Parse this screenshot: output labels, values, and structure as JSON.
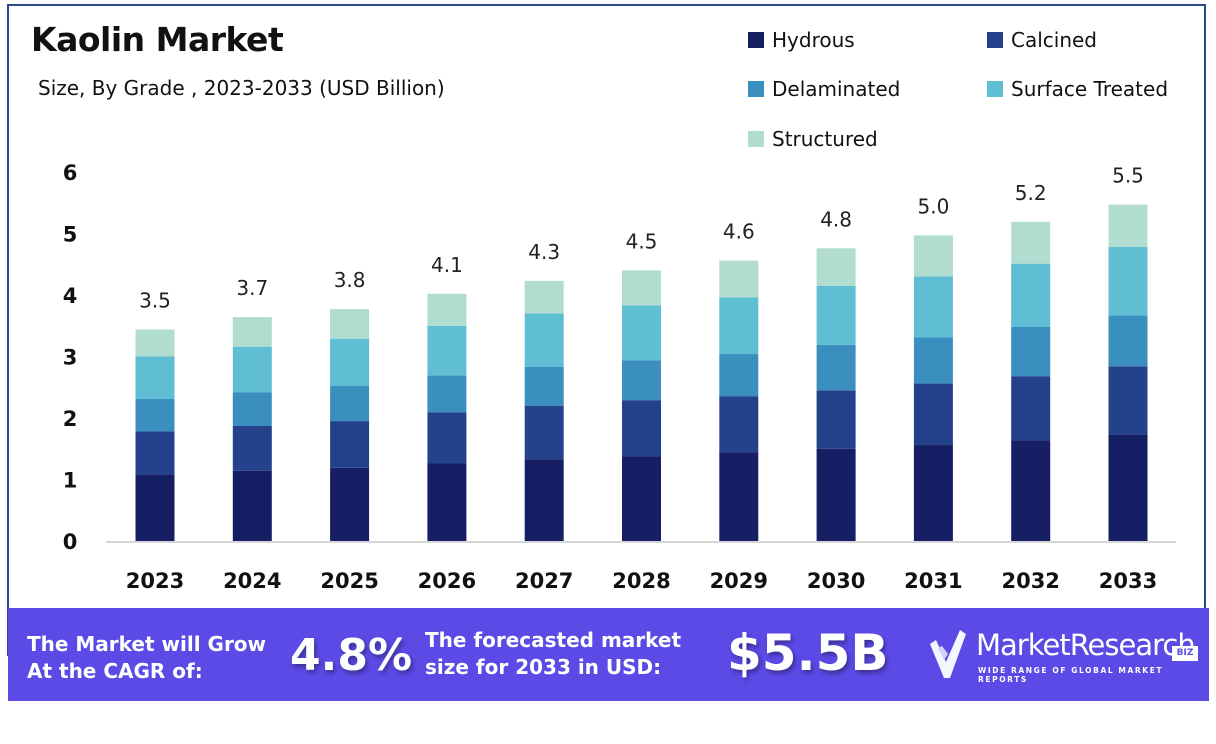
{
  "chart_data": {
    "type": "bar",
    "stacked": true,
    "title": "Kaolin Market",
    "subtitle": "Size, By Grade , 2023-2033 (USD Billion)",
    "xlabel": "",
    "ylabel": "",
    "ylim": [
      0,
      6
    ],
    "yticks": [
      "0",
      "1",
      "2",
      "3",
      "4",
      "5",
      "6"
    ],
    "grid": false,
    "legend_position": "top-right",
    "categories": [
      "2023",
      "2024",
      "2025",
      "2026",
      "2027",
      "2028",
      "2029",
      "2030",
      "2031",
      "2032",
      "2033"
    ],
    "totals": [
      "3.5",
      "3.7",
      "3.8",
      "4.1",
      "4.3",
      "4.5",
      "4.6",
      "4.8",
      "5.0",
      "5.2",
      "5.5"
    ],
    "series": [
      {
        "name": "Hydrous",
        "color": "#161f63",
        "values": [
          1.08,
          1.14,
          1.19,
          1.26,
          1.33,
          1.38,
          1.44,
          1.5,
          1.56,
          1.64,
          1.73
        ]
      },
      {
        "name": "Calcined",
        "color": "#24428c",
        "values": [
          0.7,
          0.73,
          0.76,
          0.83,
          0.87,
          0.91,
          0.91,
          0.95,
          1.0,
          1.04,
          1.11
        ]
      },
      {
        "name": "Delaminated",
        "color": "#3b8fbf",
        "values": [
          0.53,
          0.55,
          0.57,
          0.6,
          0.63,
          0.65,
          0.69,
          0.74,
          0.75,
          0.8,
          0.83
        ]
      },
      {
        "name": "Surface Treated",
        "color": "#5fbdd4",
        "values": [
          0.69,
          0.74,
          0.77,
          0.81,
          0.87,
          0.89,
          0.92,
          0.96,
          0.99,
          1.03,
          1.11
        ]
      },
      {
        "name": "Structured",
        "color": "#b1ddd0",
        "values": [
          0.44,
          0.48,
          0.48,
          0.52,
          0.53,
          0.57,
          0.6,
          0.61,
          0.67,
          0.68,
          0.69
        ]
      }
    ]
  },
  "banner": {
    "cagr_label_line1": "The Market will Grow",
    "cagr_label_line2": "At the CAGR of:",
    "cagr_value": "4.8%",
    "forecast_label_line1": "The forecasted market",
    "forecast_label_line2": "size for 2033 in USD:",
    "forecast_value": "$5.5B",
    "background_color": "#5b4ae6"
  },
  "logo": {
    "name": "MarketResearch",
    "badge": "BIZ",
    "tagline": "WIDE RANGE OF GLOBAL MARKET REPORTS",
    "icon": "checkmark-shield-icon"
  }
}
